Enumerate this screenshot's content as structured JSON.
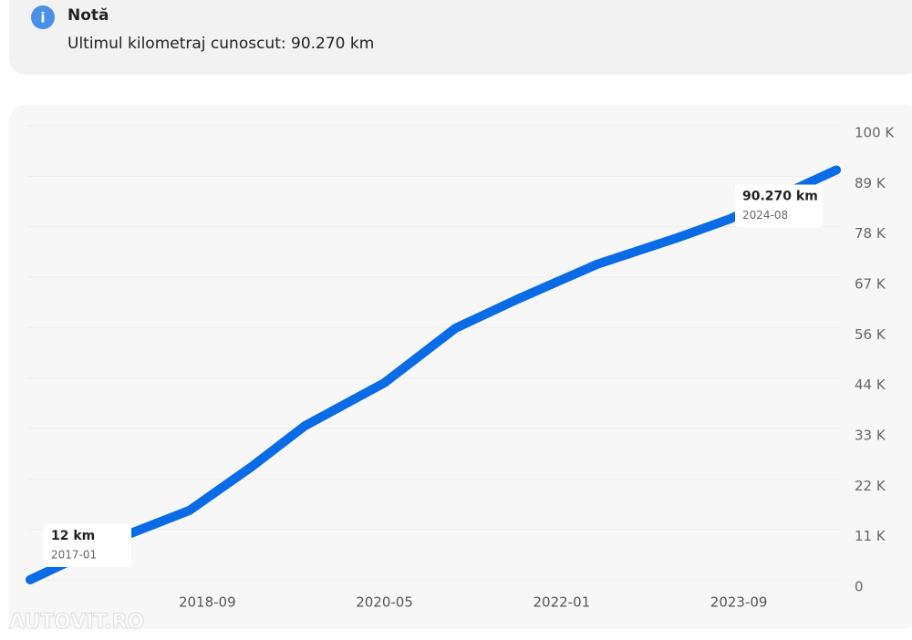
{
  "note": {
    "title": "Notă",
    "text": "Ultimul kilometraj cunoscut: 90.270 km"
  },
  "chart_data": {
    "type": "line",
    "x": [
      "2017-01",
      "2017-11",
      "2018-07",
      "2019-02",
      "2019-08",
      "2020-05",
      "2021-01",
      "2021-08",
      "2022-05",
      "2023-02",
      "2023-08",
      "2024-08"
    ],
    "series": [
      {
        "color": "#0a6be6",
        "values": [
          12,
          9200,
          15300,
          24900,
          33900,
          43400,
          55400,
          61800,
          69500,
          75300,
          79500,
          90270
        ],
        "value_labels": [
          "12 km",
          null,
          null,
          null,
          null,
          null,
          null,
          null,
          null,
          null,
          null,
          "90.270 km"
        ]
      }
    ],
    "xlim": [
      "2017-01",
      "2024-08"
    ],
    "xticks": [
      "2018-09",
      "2020-05",
      "2022-01",
      "2023-09"
    ],
    "ylim": [
      0,
      100000
    ],
    "yticks": [
      {
        "value": 0,
        "label": "0"
      },
      {
        "value": 11111,
        "label": "11 K"
      },
      {
        "value": 22222,
        "label": "22 K"
      },
      {
        "value": 33333,
        "label": "33 K"
      },
      {
        "value": 44444,
        "label": "44 K"
      },
      {
        "value": 55556,
        "label": "56 K"
      },
      {
        "value": 66667,
        "label": "67 K"
      },
      {
        "value": 77778,
        "label": "78 K"
      },
      {
        "value": 88889,
        "label": "89 K"
      },
      {
        "value": 100000,
        "label": "100 K"
      }
    ],
    "grid": true
  },
  "watermark": "AUTOVIT.RO"
}
